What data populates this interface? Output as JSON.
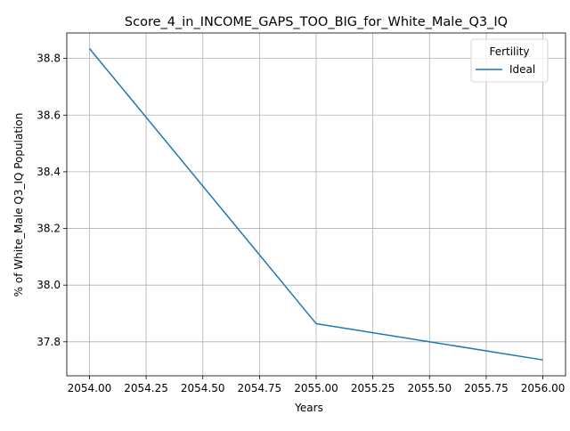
{
  "chart_data": {
    "type": "line",
    "title": "Score_4_in_INCOME_GAPS_TOO_BIG_for_White_Male_Q3_IQ",
    "xlabel": "Years",
    "ylabel": "% of White_Male Q3_IQ Population",
    "xlim": [
      2053.9,
      2056.1
    ],
    "ylim": [
      37.68,
      38.89
    ],
    "x_ticks": [
      2054.0,
      2054.25,
      2054.5,
      2054.75,
      2055.0,
      2055.25,
      2055.5,
      2055.75,
      2056.0
    ],
    "x_tick_labels": [
      "2054.00",
      "2054.25",
      "2054.50",
      "2054.75",
      "2055.00",
      "2055.25",
      "2055.50",
      "2055.75",
      "2056.00"
    ],
    "y_ticks": [
      37.8,
      38.0,
      38.2,
      38.4,
      38.6,
      38.8
    ],
    "y_tick_labels": [
      "37.8",
      "38.0",
      "38.2",
      "38.4",
      "38.6",
      "38.8"
    ],
    "grid": true,
    "legend": {
      "title": "Fertility",
      "placement": "top-right"
    },
    "series": [
      {
        "name": "Ideal",
        "color": "#1f77b4",
        "x": [
          2054,
          2055,
          2056
        ],
        "y": [
          38.835,
          37.864,
          37.736
        ]
      }
    ]
  }
}
